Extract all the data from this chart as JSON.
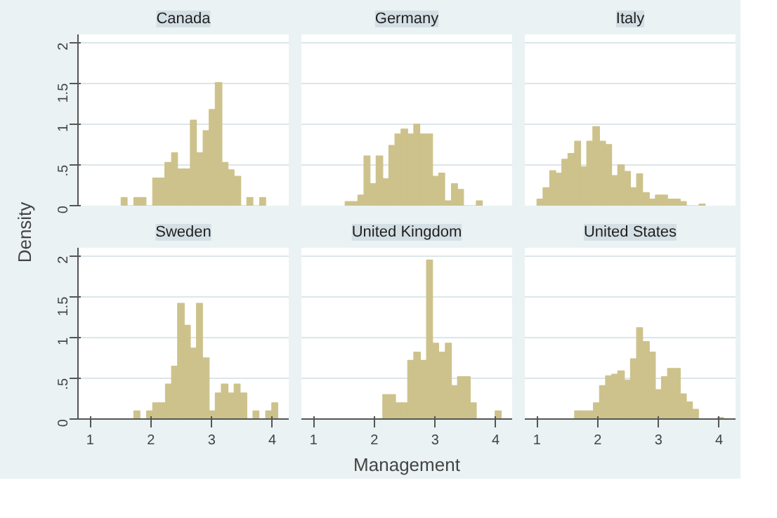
{
  "chart_data": [
    {
      "type": "histogram",
      "title": "Canada",
      "ylabel": "Density",
      "color": "#cdc28b",
      "xlim": [
        0.8,
        4.27
      ],
      "ylim": [
        0,
        2.1
      ],
      "xticks": [
        1,
        2,
        3,
        4
      ],
      "yticks": [
        0,
        {
          "value": 0.5,
          "label": ".5"
        },
        1,
        1.5,
        2
      ],
      "grid": "y",
      "tick_labels": "y",
      "bins": [
        1.51,
        1.61,
        1.72,
        1.82,
        1.92,
        2.03,
        2.13,
        2.23,
        2.34,
        2.44,
        2.55,
        2.65,
        2.75,
        2.86,
        2.96,
        3.06,
        3.17,
        3.27,
        3.37,
        3.48,
        3.58,
        3.68,
        3.79,
        3.89
      ],
      "values": [
        0.1,
        0,
        0.1,
        0.1,
        0,
        0.34,
        0.34,
        0.53,
        0.65,
        0.45,
        0.45,
        1.05,
        0.65,
        0.92,
        1.18,
        1.51,
        0.53,
        0.44,
        0.36,
        0,
        0.1,
        0,
        0.1
      ]
    },
    {
      "type": "histogram",
      "title": "Germany",
      "color": "#cdc28b",
      "xlim": [
        0.8,
        4.27
      ],
      "ylim": [
        0,
        2.1
      ],
      "xticks": [
        1,
        2,
        3,
        4
      ],
      "yticks": [
        0,
        0.5,
        1,
        1.5,
        2
      ],
      "grid": "y",
      "tick_labels": false,
      "bins": [
        1.52,
        1.62,
        1.73,
        1.83,
        1.93,
        2.03,
        2.14,
        2.24,
        2.34,
        2.44,
        2.55,
        2.65,
        2.75,
        2.86,
        2.96,
        3.06,
        3.16,
        3.27,
        3.37,
        3.47,
        3.57,
        3.68,
        3.78
      ],
      "values": [
        0.05,
        0.05,
        0.13,
        0.61,
        0.27,
        0.61,
        0.33,
        0.74,
        0.88,
        0.94,
        0.88,
        1.0,
        0.88,
        0.88,
        0.36,
        0.4,
        0.06,
        0.27,
        0.2,
        0,
        0,
        0.06
      ]
    },
    {
      "type": "histogram",
      "title": "Italy",
      "color": "#cdc28b",
      "xlim": [
        0.8,
        4.27
      ],
      "ylim": [
        0,
        2.1
      ],
      "xticks": [
        1,
        2,
        3,
        4
      ],
      "yticks": [
        0,
        0.5,
        1,
        1.5,
        2
      ],
      "grid": "y",
      "tick_labels": false,
      "bins": [
        1.0,
        1.1,
        1.21,
        1.31,
        1.41,
        1.51,
        1.62,
        1.72,
        1.82,
        1.92,
        2.03,
        2.13,
        2.23,
        2.33,
        2.44,
        2.54,
        2.64,
        2.74,
        2.85,
        2.95,
        3.05,
        3.15,
        3.26,
        3.36,
        3.46,
        3.56,
        3.67,
        3.77
      ],
      "values": [
        0.08,
        0.22,
        0.43,
        0.4,
        0.57,
        0.64,
        0.79,
        0.48,
        0.79,
        0.97,
        0.79,
        0.75,
        0.37,
        0.5,
        0.42,
        0.22,
        0.39,
        0.16,
        0.08,
        0.13,
        0.13,
        0.08,
        0.08,
        0.05,
        0,
        0,
        0.02
      ]
    },
    {
      "type": "histogram",
      "title": "Sweden",
      "color": "#cdc28b",
      "xlim": [
        0.8,
        4.27
      ],
      "ylim": [
        0,
        2.1
      ],
      "xticks": [
        1,
        2,
        3,
        4
      ],
      "yticks": [
        0,
        {
          "value": 0.5,
          "label": ".5"
        },
        1,
        1.5,
        2
      ],
      "grid": "y",
      "bins": [
        1.72,
        1.82,
        1.93,
        2.03,
        2.13,
        2.24,
        2.34,
        2.44,
        2.55,
        2.65,
        2.75,
        2.85,
        2.96,
        3.06,
        3.16,
        3.27,
        3.37,
        3.47,
        3.58,
        3.68,
        3.78,
        3.89,
        3.99,
        4.09
      ],
      "values": [
        0.1,
        0,
        0.1,
        0.2,
        0.2,
        0.43,
        0.65,
        1.42,
        1.15,
        0.87,
        1.42,
        0.75,
        0.1,
        0.32,
        0.43,
        0.32,
        0.43,
        0.32,
        0,
        0.1,
        0,
        0.1,
        0.2
      ]
    },
    {
      "type": "histogram",
      "title": "United Kingdom",
      "xlabel": "Management",
      "color": "#cdc28b",
      "xlim": [
        0.8,
        4.27
      ],
      "ylim": [
        0,
        2.1
      ],
      "xticks": [
        1,
        2,
        3,
        4
      ],
      "yticks": [
        0,
        0.5,
        1,
        1.5,
        2
      ],
      "grid": "y",
      "tick_labels": "x",
      "bins": [
        2.14,
        2.24,
        2.35,
        2.45,
        2.55,
        2.65,
        2.76,
        2.86,
        2.96,
        3.06,
        3.17,
        3.27,
        3.37,
        3.47,
        3.58,
        3.68,
        3.78,
        3.89,
        3.99,
        4.09
      ],
      "values": [
        0.3,
        0.3,
        0.2,
        0.2,
        0.72,
        0.82,
        0.72,
        1.95,
        0.93,
        0.82,
        0.93,
        0.41,
        0.52,
        0.52,
        0.2,
        0,
        0,
        0,
        0.1
      ]
    },
    {
      "type": "histogram",
      "title": "United States",
      "color": "#cdc28b",
      "xlim": [
        0.8,
        4.27
      ],
      "ylim": [
        0,
        2.1
      ],
      "xticks": [
        1,
        2,
        3,
        4
      ],
      "yticks": [
        0,
        0.5,
        1,
        1.5,
        2
      ],
      "grid": "y",
      "tick_labels": "x",
      "bins": [
        1.62,
        1.72,
        1.82,
        1.93,
        2.03,
        2.13,
        2.23,
        2.33,
        2.44,
        2.54,
        2.64,
        2.74,
        2.85,
        2.95,
        3.05,
        3.15,
        3.25,
        3.36,
        3.46,
        3.56,
        3.66,
        3.76,
        3.87,
        3.97,
        4.07
      ],
      "values": [
        0.1,
        0.1,
        0.1,
        0.2,
        0.41,
        0.53,
        0.55,
        0.59,
        0.48,
        0.74,
        1.12,
        0.95,
        0.82,
        0.36,
        0.52,
        0.62,
        0.62,
        0.31,
        0.21,
        0.12,
        0,
        0,
        0,
        0.02
      ]
    }
  ]
}
